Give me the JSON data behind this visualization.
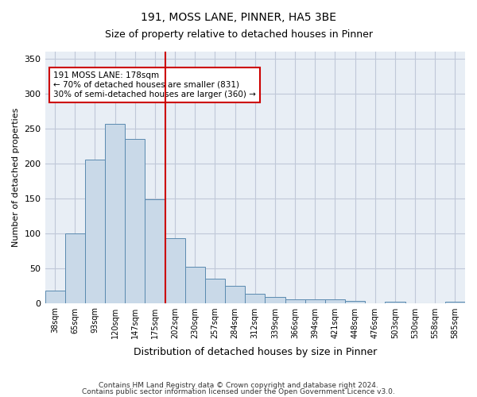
{
  "title1": "191, MOSS LANE, PINNER, HA5 3BE",
  "title2": "Size of property relative to detached houses in Pinner",
  "xlabel": "Distribution of detached houses by size in Pinner",
  "ylabel": "Number of detached properties",
  "categories": [
    "38sqm",
    "65sqm",
    "93sqm",
    "120sqm",
    "147sqm",
    "175sqm",
    "202sqm",
    "230sqm",
    "257sqm",
    "284sqm",
    "312sqm",
    "339sqm",
    "366sqm",
    "394sqm",
    "421sqm",
    "448sqm",
    "476sqm",
    "503sqm",
    "530sqm",
    "558sqm",
    "585sqm"
  ],
  "values": [
    18,
    100,
    205,
    257,
    235,
    148,
    93,
    52,
    35,
    25,
    13,
    8,
    5,
    5,
    5,
    3,
    0,
    2,
    0,
    0,
    2
  ],
  "bar_color": "#c9d9e8",
  "bar_edge_color": "#5a8ab0",
  "vline_x": 5,
  "vline_color": "#cc0000",
  "annotation_text": "191 MOSS LANE: 178sqm\n← 70% of detached houses are smaller (831)\n30% of semi-detached houses are larger (360) →",
  "annotation_box_color": "#ffffff",
  "annotation_box_edge": "#cc0000",
  "ylim": [
    0,
    360
  ],
  "yticks": [
    0,
    50,
    100,
    150,
    200,
    250,
    300,
    350
  ],
  "grid_color": "#c0c8d8",
  "background_color": "#e8eef5",
  "footer1": "Contains HM Land Registry data © Crown copyright and database right 2024.",
  "footer2": "Contains public sector information licensed under the Open Government Licence v3.0."
}
